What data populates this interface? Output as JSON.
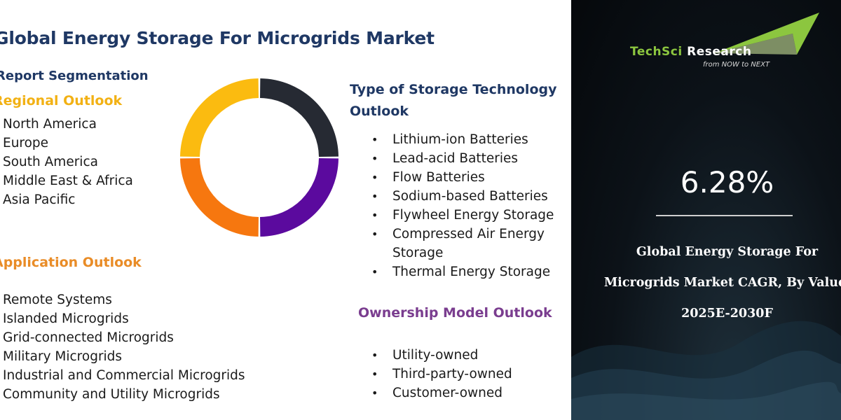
{
  "title": "Global Energy Storage For Microgrids Market",
  "subtitle": "Report Segmentation",
  "regional": {
    "heading": "Regional Outlook",
    "items": [
      "North America",
      "Europe",
      "South America",
      "Middle East & Africa",
      "Asia Pacific"
    ]
  },
  "application": {
    "heading": "Application Outlook",
    "items": [
      "Remote Systems",
      "Islanded Microgrids",
      "Grid-connected Microgrids",
      "Military Microgrids",
      "Industrial and Commercial Microgrids",
      "Community and Utility Microgrids"
    ]
  },
  "storage": {
    "heading": "Type of Storage Technology Outlook",
    "items": [
      "Lithium-ion Batteries",
      "Lead-acid Batteries",
      "Flow Batteries",
      "Sodium-based Batteries",
      "Flywheel Energy Storage",
      "Compressed Air Energy Storage",
      "Thermal Energy Storage"
    ]
  },
  "ownership": {
    "heading": "Ownership Model Outlook",
    "items": [
      "Utility-owned",
      "Third-party-owned",
      "Customer-owned"
    ]
  },
  "donut": {
    "segments": [
      {
        "share": 0.25,
        "color": "#262a33"
      },
      {
        "share": 0.25,
        "color": "#5b0a9e"
      },
      {
        "share": 0.25,
        "color": "#f6770f"
      },
      {
        "share": 0.25,
        "color": "#fbbb10"
      }
    ]
  },
  "logo": {
    "part1": "TechSci",
    "part2": "Research",
    "tagline": "from NOW to NEXT"
  },
  "cagr": {
    "value": "6.28%",
    "caption_line1": "Global Energy Storage For",
    "caption_line2": "Microgrids Market CAGR, By Value,",
    "caption_line3": "2025E-2030F"
  },
  "colors": {
    "title": "#1f3864",
    "regional": "#f2b114",
    "application": "#e98c27",
    "ownership": "#7a3d8f",
    "logo_green": "#8cc63f",
    "panel_bg": "#0c1218"
  }
}
